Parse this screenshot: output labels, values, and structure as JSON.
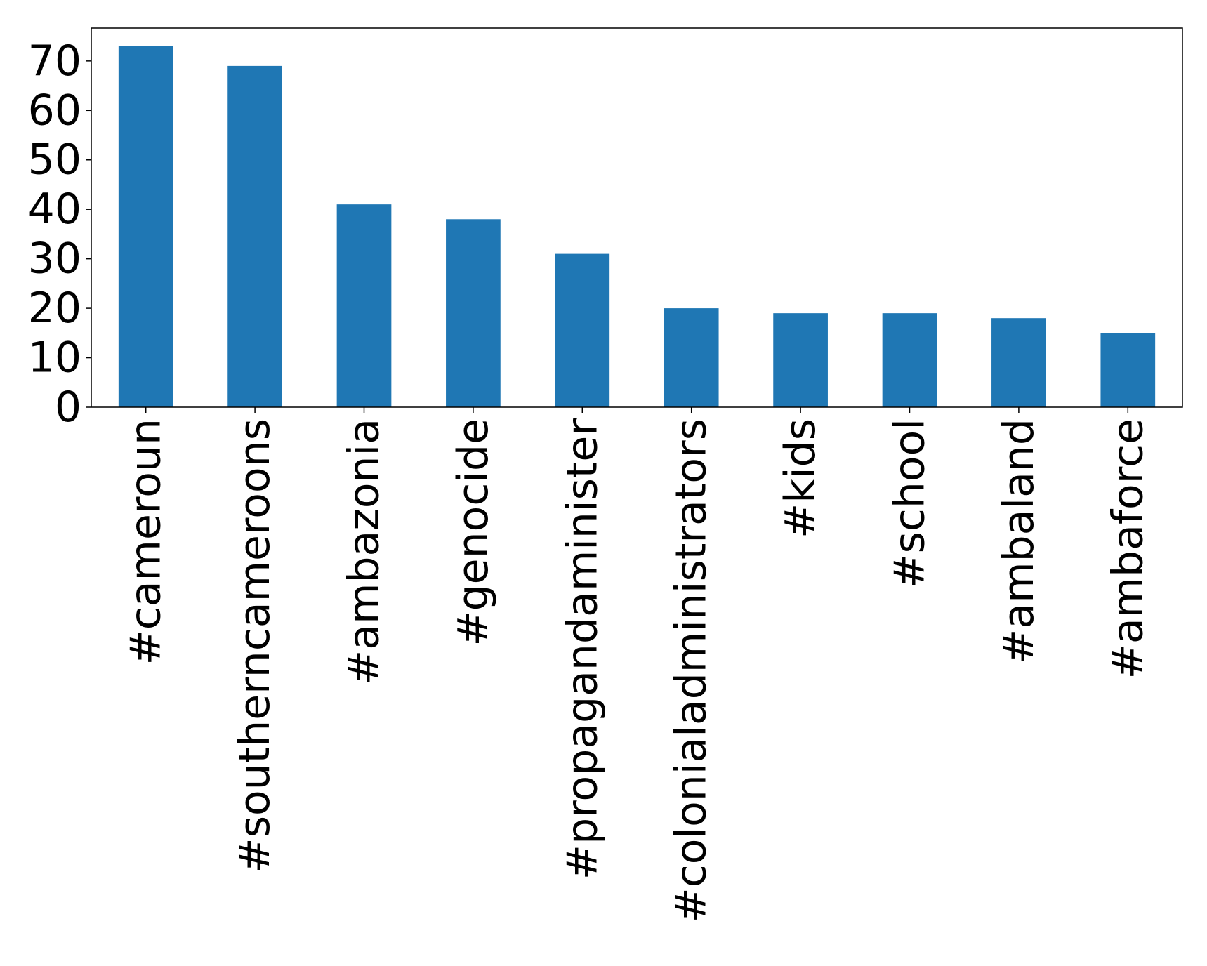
{
  "chart_data": {
    "type": "bar",
    "title": "",
    "xlabel": "",
    "ylabel": "",
    "categories": [
      "#cameroun",
      "#southerncameroons",
      "#ambazonia",
      "#genocide",
      "#propagandaminister",
      "#colonialadministrators",
      "#kids",
      "#school",
      "#ambaland",
      "#ambaforce"
    ],
    "values": [
      73,
      69,
      41,
      38,
      31,
      20,
      19,
      19,
      18,
      15
    ],
    "ylim": [
      0,
      76.65
    ],
    "yticks": [
      0,
      10,
      20,
      30,
      40,
      50,
      60,
      70
    ],
    "grid": false,
    "legend": "none",
    "bar_color": "#1f77b4"
  }
}
